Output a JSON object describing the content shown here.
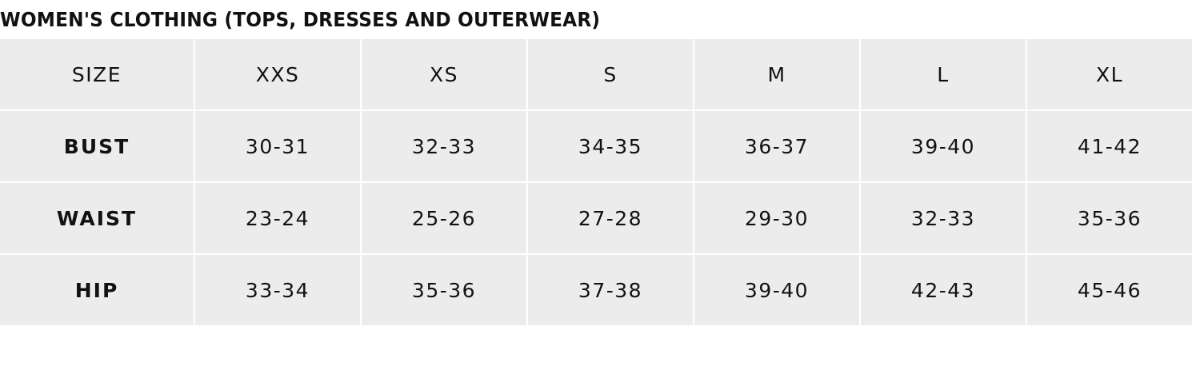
{
  "header": {
    "title": "WOMEN'S CLOTHING (TOPS, DRESSES AND OUTERWEAR)"
  },
  "table": {
    "columns": [
      "SIZE",
      "XXS",
      "XS",
      "S",
      "M",
      "L",
      "XL"
    ],
    "rows": [
      [
        "BUST",
        "30-31",
        "32-33",
        "34-35",
        "36-37",
        "39-40",
        "41-42"
      ],
      [
        "WAIST",
        "23-24",
        "25-26",
        "27-28",
        "29-30",
        "32-33",
        "35-36"
      ],
      [
        "HIP",
        "33-34",
        "35-36",
        "37-38",
        "39-40",
        "42-43",
        "45-46"
      ]
    ]
  }
}
